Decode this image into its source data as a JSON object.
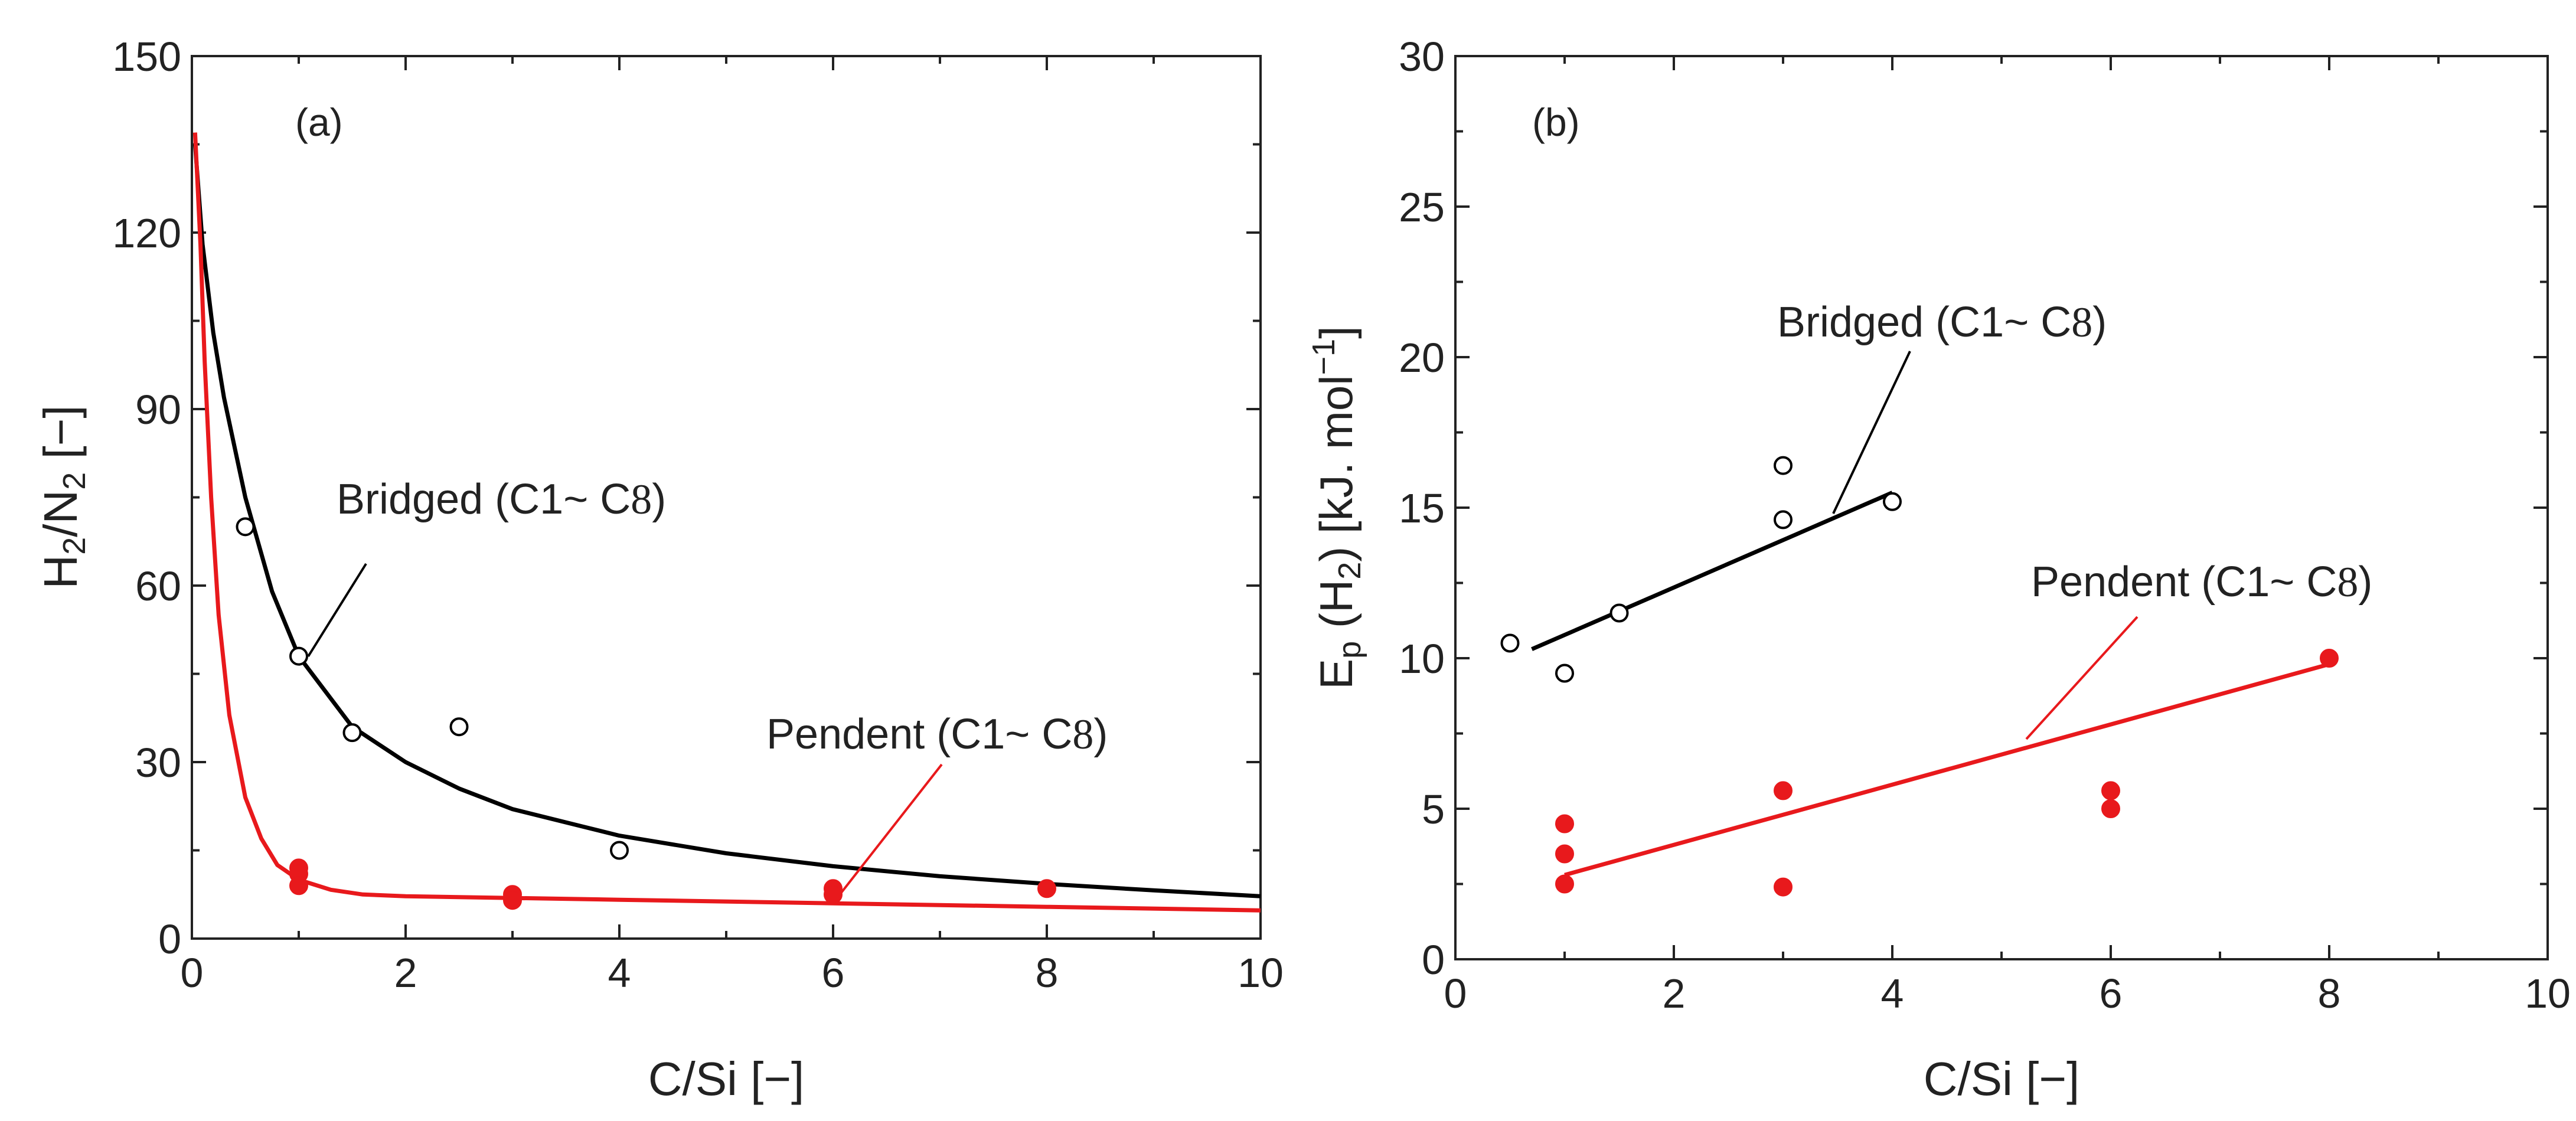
{
  "chart_data": [
    {
      "type": "scatter",
      "panel_label": "(a)",
      "xlabel": "C/Si [−]",
      "ylabel": "H2/N2 [−]",
      "ylabel_parts": {
        "a": "H",
        "a_sub": "2",
        "b": "/N",
        "b_sub": "2",
        "c": " [−]"
      },
      "xlim": [
        0,
        10
      ],
      "ylim": [
        0,
        150
      ],
      "xticks": [
        0,
        2,
        4,
        6,
        8,
        10
      ],
      "yticks": [
        0,
        30,
        60,
        90,
        120,
        150
      ],
      "grid": false,
      "series": [
        {
          "name": "Bridged (C1~ C8)",
          "label_main": "Bridged (C1~ C",
          "label_num": "8",
          "label_close": ")",
          "color": "#000000",
          "marker": "open-circle",
          "points": [
            [
              0.5,
              70
            ],
            [
              1.0,
              48
            ],
            [
              1.5,
              35
            ],
            [
              2.5,
              36
            ],
            [
              4.0,
              15
            ]
          ],
          "fit": [
            [
              0.03,
              135
            ],
            [
              0.1,
              118
            ],
            [
              0.2,
              103
            ],
            [
              0.3,
              92
            ],
            [
              0.5,
              75
            ],
            [
              0.75,
              59
            ],
            [
              1.0,
              48
            ],
            [
              1.5,
              36
            ],
            [
              2.0,
              30
            ],
            [
              2.5,
              25.5
            ],
            [
              3.0,
              22
            ],
            [
              4.0,
              17.5
            ],
            [
              5.0,
              14.5
            ],
            [
              6.0,
              12.3
            ],
            [
              7.0,
              10.6
            ],
            [
              8.0,
              9.3
            ],
            [
              9.0,
              8.2
            ],
            [
              10.0,
              7.2
            ]
          ]
        },
        {
          "name": "Pendent (C1~ C8)",
          "label_main": "Pendent (C1~ C",
          "label_num": "8",
          "label_close": ")",
          "color": "#e8191c",
          "marker": "filled-circle",
          "points": [
            [
              1.0,
              12
            ],
            [
              1.0,
              11
            ],
            [
              1.0,
              9
            ],
            [
              3.0,
              7.5
            ],
            [
              3.0,
              6.5
            ],
            [
              6.0,
              8.5
            ],
            [
              6.0,
              7.5
            ],
            [
              8.0,
              8.5
            ]
          ],
          "fit": [
            [
              0.03,
              137
            ],
            [
              0.08,
              118
            ],
            [
              0.12,
              98
            ],
            [
              0.18,
              75
            ],
            [
              0.25,
              55
            ],
            [
              0.35,
              38
            ],
            [
              0.5,
              24
            ],
            [
              0.65,
              17
            ],
            [
              0.8,
              12.5
            ],
            [
              1.0,
              10
            ],
            [
              1.3,
              8.3
            ],
            [
              1.6,
              7.5
            ],
            [
              2.0,
              7.2
            ],
            [
              3.0,
              6.9
            ],
            [
              4.0,
              6.6
            ],
            [
              6.0,
              6.0
            ],
            [
              8.0,
              5.4
            ],
            [
              10.0,
              4.8
            ]
          ]
        }
      ]
    },
    {
      "type": "scatter",
      "panel_label": "(b)",
      "xlabel": "C/Si [−]",
      "ylabel": "Ep (H2) [kJ. mol-1]",
      "ylabel_parts": {
        "a": "E",
        "a_sub": "p",
        "b": " (H",
        "b_sub": "2",
        "c": ") [kJ. mol",
        "c_sup": "−1",
        "d": "]"
      },
      "xlim": [
        0,
        10
      ],
      "ylim": [
        0,
        30
      ],
      "xticks": [
        0,
        2,
        4,
        6,
        8,
        10
      ],
      "yticks": [
        0,
        5,
        10,
        15,
        20,
        25,
        30
      ],
      "grid": false,
      "series": [
        {
          "name": "Bridged (C1~ C8)",
          "label_main": "Bridged (C1~ C",
          "label_num": "8",
          "label_close": ")",
          "color": "#000000",
          "marker": "open-circle",
          "points": [
            [
              0.5,
              10.5
            ],
            [
              1.0,
              9.5
            ],
            [
              1.5,
              11.5
            ],
            [
              3.0,
              16.4
            ],
            [
              3.0,
              14.6
            ],
            [
              4.0,
              15.2
            ]
          ],
          "fit": [
            [
              0.7,
              10.3
            ],
            [
              4.0,
              15.5
            ]
          ]
        },
        {
          "name": "Pendent (C1~ C8)",
          "label_main": "Pendent (C1~ C",
          "label_num": "8",
          "label_close": ")",
          "color": "#e8191c",
          "marker": "filled-circle",
          "points": [
            [
              1.0,
              4.5
            ],
            [
              1.0,
              3.5
            ],
            [
              1.0,
              2.5
            ],
            [
              3.0,
              5.6
            ],
            [
              3.0,
              2.4
            ],
            [
              6.0,
              5.6
            ],
            [
              6.0,
              5.0
            ],
            [
              8.0,
              10.0
            ]
          ],
          "fit": [
            [
              1.0,
              2.8
            ],
            [
              8.0,
              9.8
            ]
          ]
        }
      ]
    }
  ]
}
